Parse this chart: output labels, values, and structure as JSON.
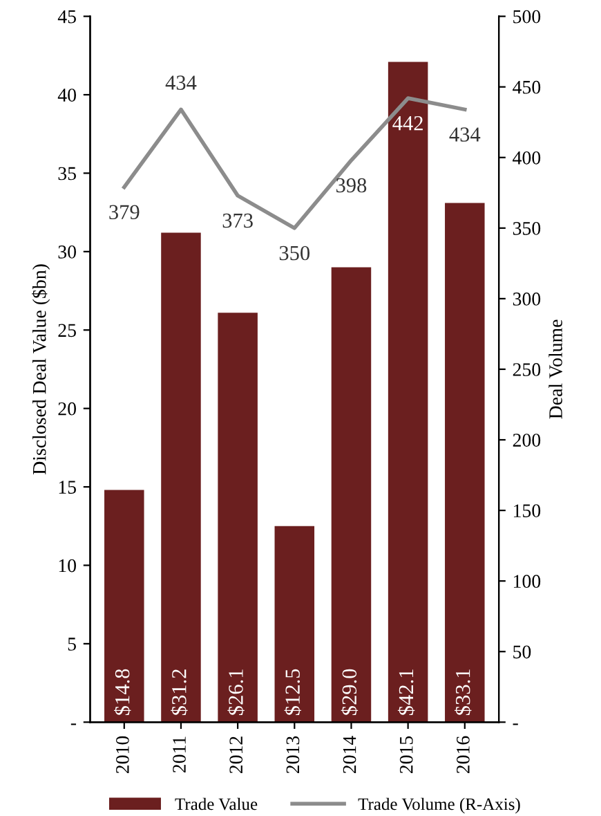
{
  "chart_data": {
    "type": "bar",
    "ylabel": "Disclosed Deal Value ($bn)",
    "y2label": "Deal Volume",
    "categories": [
      "2010",
      "2011",
      "2012",
      "2013",
      "2014",
      "2015",
      "2016"
    ],
    "series": [
      {
        "name": "Trade Value",
        "color": "#6b1f1f",
        "values": [
          14.8,
          31.2,
          26.1,
          12.5,
          29.0,
          42.1,
          33.1
        ],
        "value_labels": [
          "$14.8",
          "$31.2",
          "$26.1",
          "$12.5",
          "$29.0",
          "$42.1",
          "$33.1"
        ]
      },
      {
        "name": "Trade Volume (R-Axis)",
        "type": "line",
        "axis": "y2",
        "color": "#8c8c8c",
        "values": [
          379,
          434,
          373,
          350,
          398,
          442,
          434
        ],
        "value_labels": [
          "379",
          "434",
          "373",
          "350",
          "398",
          "442",
          "434"
        ]
      }
    ],
    "ylim": [
      0,
      45
    ],
    "yticks": [
      {
        "value": 0,
        "label": "-"
      },
      5,
      10,
      15,
      20,
      25,
      30,
      35,
      40,
      45
    ],
    "y2lim": [
      0,
      500
    ],
    "y2ticks": [
      {
        "value": 0,
        "label": "-"
      },
      50,
      100,
      150,
      200,
      250,
      300,
      350,
      400,
      450,
      500
    ],
    "grid": false,
    "legend": "bottom",
    "marker": "none",
    "line_style": "solid"
  }
}
